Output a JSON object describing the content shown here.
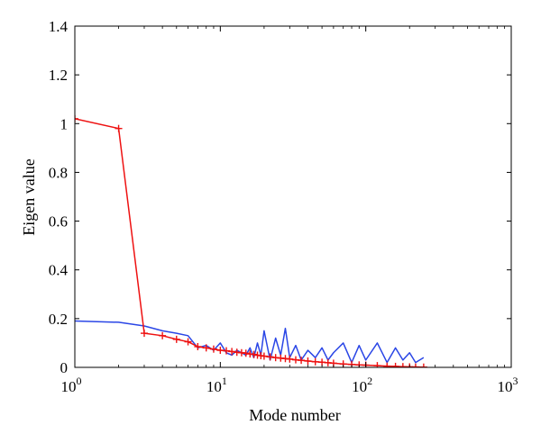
{
  "chart_data": {
    "type": "line",
    "title": "",
    "xlabel": "Mode number",
    "ylabel": "Eigen value",
    "xscale": "log",
    "xlim": [
      1,
      1000
    ],
    "ylim": [
      0,
      1.4
    ],
    "x_ticks": [
      {
        "value": 1,
        "base": "10",
        "exp": "0"
      },
      {
        "value": 10,
        "base": "10",
        "exp": "1"
      },
      {
        "value": 100,
        "base": "10",
        "exp": "2"
      },
      {
        "value": 1000,
        "base": "10",
        "exp": "3"
      }
    ],
    "y_ticks": [
      {
        "value": 0,
        "label": "0"
      },
      {
        "value": 0.2,
        "label": "0.2"
      },
      {
        "value": 0.4,
        "label": "0.4"
      },
      {
        "value": 0.6,
        "label": "0.6"
      },
      {
        "value": 0.8,
        "label": "0.8"
      },
      {
        "value": 1.0,
        "label": "1"
      },
      {
        "value": 1.2,
        "label": "1.2"
      },
      {
        "value": 1.4,
        "label": "1.4"
      }
    ],
    "grid": false,
    "legend": "none",
    "colors": {
      "blue": "#2a46e6",
      "red": "#ee1111"
    },
    "series": [
      {
        "color": "blue",
        "marker": "none",
        "x": [
          1,
          2,
          3,
          4,
          5,
          6,
          7,
          8,
          9,
          10,
          11,
          12,
          13,
          14,
          15,
          16,
          17,
          18,
          19,
          20,
          22,
          24,
          26,
          28,
          30,
          33,
          36,
          40,
          45,
          50,
          55,
          60,
          70,
          80,
          90,
          100,
          120,
          140,
          160,
          180,
          200,
          220,
          250
        ],
        "y": [
          0.19,
          0.185,
          0.17,
          0.15,
          0.14,
          0.13,
          0.08,
          0.09,
          0.07,
          0.1,
          0.06,
          0.05,
          0.07,
          0.06,
          0.05,
          0.08,
          0.04,
          0.1,
          0.05,
          0.15,
          0.03,
          0.12,
          0.05,
          0.16,
          0.04,
          0.09,
          0.03,
          0.07,
          0.04,
          0.08,
          0.03,
          0.06,
          0.1,
          0.02,
          0.09,
          0.03,
          0.1,
          0.02,
          0.08,
          0.03,
          0.06,
          0.02,
          0.04
        ]
      },
      {
        "color": "red",
        "marker": "+",
        "x": [
          1,
          2,
          3,
          4,
          5,
          6,
          7,
          8,
          9,
          10,
          11,
          12,
          13,
          14,
          15,
          16,
          17,
          18,
          19,
          20,
          22,
          24,
          26,
          28,
          30,
          33,
          36,
          40,
          45,
          50,
          55,
          60,
          70,
          80,
          90,
          100,
          120,
          140,
          160,
          180,
          200,
          220,
          250
        ],
        "y": [
          1.02,
          0.98,
          0.14,
          0.13,
          0.115,
          0.105,
          0.085,
          0.08,
          0.075,
          0.07,
          0.068,
          0.065,
          0.062,
          0.06,
          0.058,
          0.055,
          0.053,
          0.05,
          0.048,
          0.046,
          0.043,
          0.04,
          0.038,
          0.036,
          0.034,
          0.031,
          0.029,
          0.026,
          0.023,
          0.021,
          0.019,
          0.017,
          0.014,
          0.012,
          0.01,
          0.009,
          0.007,
          0.005,
          0.004,
          0.003,
          0.002,
          0.0015,
          0.001
        ]
      }
    ]
  }
}
